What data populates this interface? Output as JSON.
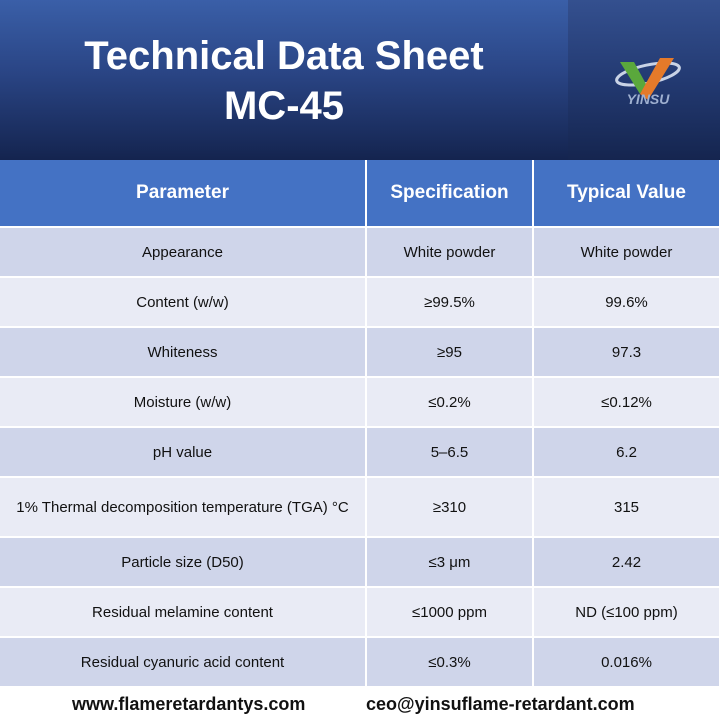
{
  "header": {
    "title": [
      "Technical Data Sheet",
      "MC-45"
    ],
    "logo_text": "YINSU"
  },
  "table": {
    "columns": [
      "Parameter",
      "Specification",
      "Typical Value"
    ],
    "rows": [
      [
        "Appearance",
        "White powder",
        "White powder"
      ],
      [
        "Content (w/w)",
        "≥99.5%",
        "99.6%"
      ],
      [
        "Whiteness",
        "≥95",
        "97.3"
      ],
      [
        "Moisture (w/w)",
        "≤0.2%",
        "≤0.12%"
      ],
      [
        "pH value",
        "5–6.5",
        "6.2"
      ],
      [
        "1% Thermal decomposition temperature (TGA) °C",
        "≥310",
        "315"
      ],
      [
        "Particle size (D50)",
        "≤3 μm",
        "2.42"
      ],
      [
        "Residual melamine content",
        "≤1000 ppm",
        "ND (≤100 ppm)"
      ],
      [
        "Residual cyanuric acid content",
        "≤0.3%",
        "0.016%"
      ]
    ]
  },
  "footer": {
    "website": "www.flameretardantys.com",
    "email": "ceo@yinsuflame-retardant.com"
  }
}
